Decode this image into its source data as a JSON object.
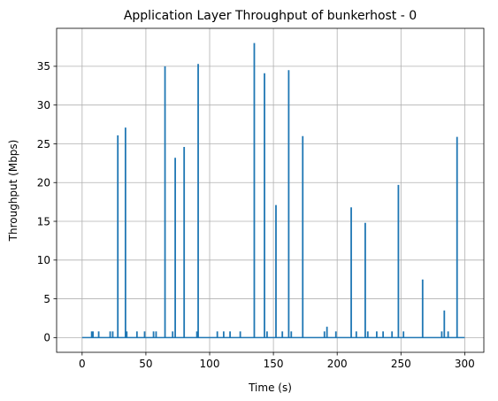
{
  "chart_data": {
    "type": "line",
    "title": "Application Layer Throughput of bunkerhost - 0",
    "xlabel": "Time (s)",
    "ylabel": "Throughput (Mbps)",
    "xlim": [
      -20,
      315
    ],
    "ylim": [
      -1.9,
      39.9
    ],
    "grid": true,
    "xticks": [
      0,
      50,
      100,
      150,
      200,
      250,
      300
    ],
    "yticks": [
      0,
      5,
      10,
      15,
      20,
      25,
      30,
      35
    ],
    "x_tick_labels": [
      "0",
      "50",
      "100",
      "150",
      "200",
      "250",
      "300"
    ],
    "y_tick_labels": [
      "0",
      "5",
      "10",
      "15",
      "20",
      "25",
      "30",
      "35"
    ],
    "series": [
      {
        "color": "#1f77b4",
        "baseline": 0,
        "time_range": [
          0,
          300
        ],
        "spikes": [
          {
            "x": 7.5,
            "y": 0.8
          },
          {
            "x": 8.5,
            "y": 0.8
          },
          {
            "x": 13,
            "y": 0.8
          },
          {
            "x": 22,
            "y": 0.8
          },
          {
            "x": 24,
            "y": 0.8
          },
          {
            "x": 28,
            "y": 26.1
          },
          {
            "x": 34,
            "y": 27.1
          },
          {
            "x": 35,
            "y": 0.8
          },
          {
            "x": 43,
            "y": 0.8
          },
          {
            "x": 49,
            "y": 0.8
          },
          {
            "x": 56,
            "y": 0.8
          },
          {
            "x": 58,
            "y": 0.8
          },
          {
            "x": 65,
            "y": 35
          },
          {
            "x": 71,
            "y": 0.8
          },
          {
            "x": 73,
            "y": 23.2
          },
          {
            "x": 80,
            "y": 24.6
          },
          {
            "x": 90,
            "y": 0.8
          },
          {
            "x": 91,
            "y": 35.3
          },
          {
            "x": 106,
            "y": 0.8
          },
          {
            "x": 111,
            "y": 0.8
          },
          {
            "x": 116,
            "y": 0.8
          },
          {
            "x": 124,
            "y": 0.8
          },
          {
            "x": 135,
            "y": 38
          },
          {
            "x": 143,
            "y": 34.1
          },
          {
            "x": 145,
            "y": 0.8
          },
          {
            "x": 152,
            "y": 17.1
          },
          {
            "x": 157,
            "y": 0.8
          },
          {
            "x": 162,
            "y": 34.5
          },
          {
            "x": 164,
            "y": 0.8
          },
          {
            "x": 173,
            "y": 26
          },
          {
            "x": 190,
            "y": 0.8
          },
          {
            "x": 192,
            "y": 1.4
          },
          {
            "x": 199,
            "y": 0.8
          },
          {
            "x": 211,
            "y": 16.8
          },
          {
            "x": 215,
            "y": 0.8
          },
          {
            "x": 222,
            "y": 14.8
          },
          {
            "x": 224,
            "y": 0.8
          },
          {
            "x": 231,
            "y": 0.8
          },
          {
            "x": 236,
            "y": 0.8
          },
          {
            "x": 243,
            "y": 0.8
          },
          {
            "x": 248,
            "y": 19.7
          },
          {
            "x": 252,
            "y": 0.8
          },
          {
            "x": 267,
            "y": 7.5
          },
          {
            "x": 282,
            "y": 0.8
          },
          {
            "x": 284,
            "y": 3.5
          },
          {
            "x": 287,
            "y": 0.8
          },
          {
            "x": 294,
            "y": 25.9
          }
        ]
      }
    ]
  }
}
